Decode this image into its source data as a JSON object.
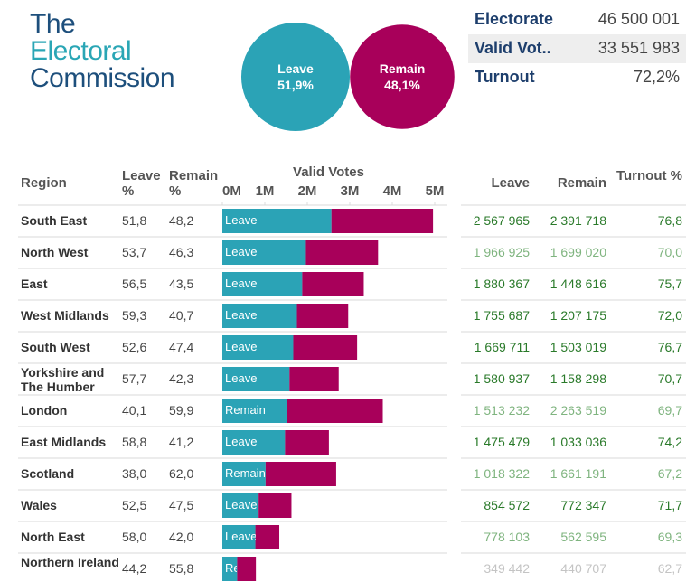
{
  "logo": [
    "The",
    "Electoral",
    "Commission"
  ],
  "overall": [
    {
      "name": "Leave",
      "value": 51.9,
      "value_label": "51,9%",
      "color": "#2ba3b6"
    },
    {
      "name": "Remain",
      "value": 48.1,
      "value_label": "48,1%",
      "color": "#a8005a"
    }
  ],
  "summary": [
    {
      "label": "Electorate",
      "value": 46500001,
      "value_label": "46 500 001"
    },
    {
      "label": "Valid Vot..",
      "value": 33551983,
      "value_label": "33 551 983"
    },
    {
      "label": "Turnout",
      "value": 72.2,
      "value_label": "72,2%"
    }
  ],
  "chart_data": {
    "type": "bar",
    "title": "Valid Votes",
    "headers": {
      "region": "Region",
      "leave_pct": "Leave %",
      "remain_pct": "Remain %",
      "leave": "Leave",
      "remain": "Remain",
      "turnout": "Turnout %"
    },
    "categories": [
      "South East",
      "North West",
      "East",
      "West Midlands",
      "South West",
      "Yorkshire and The Humber",
      "London",
      "East Midlands",
      "Scotland",
      "Wales",
      "North East",
      "Northern Ireland"
    ],
    "series": [
      {
        "name": "Leave",
        "color": "#2ba3b6",
        "values": [
          2567965,
          1966925,
          1880367,
          1755687,
          1669711,
          1580937,
          1513232,
          1475479,
          1018322,
          854572,
          778103,
          349442
        ],
        "value_labels": [
          "2 567 965",
          "1 966 925",
          "1 880 367",
          "1 755 687",
          "1 669 711",
          "1 580 937",
          "1 513 232",
          "1 475 479",
          "1 018 322",
          "854 572",
          "778 103",
          "349 442"
        ]
      },
      {
        "name": "Remain",
        "color": "#a8005a",
        "values": [
          2391718,
          1699020,
          1448616,
          1207175,
          1503019,
          1158298,
          2263519,
          1033036,
          1661191,
          772347,
          562595,
          440707
        ],
        "value_labels": [
          "2 391 718",
          "1 699 020",
          "1 448 616",
          "1 207 175",
          "1 503 019",
          "1 158 298",
          "2 263 519",
          "1 033 036",
          "1 661 191",
          "772 347",
          "562 595",
          "440 707"
        ]
      }
    ],
    "bar_labels": [
      "Leave",
      "Leave",
      "Leave",
      "Leave",
      "Leave",
      "Leave",
      "Remain",
      "Leave",
      "Remain",
      "Leave",
      "Leave",
      "Remain"
    ],
    "leave_pct": {
      "values": [
        51.8,
        53.7,
        56.5,
        59.3,
        52.6,
        57.7,
        40.1,
        58.8,
        38.0,
        52.5,
        58.0,
        44.2
      ],
      "value_labels": [
        "51,8",
        "53,7",
        "56,5",
        "59,3",
        "52,6",
        "57,7",
        "40,1",
        "58,8",
        "38,0",
        "52,5",
        "58,0",
        "44,2"
      ]
    },
    "remain_pct": {
      "values": [
        48.2,
        46.3,
        43.5,
        40.7,
        47.4,
        42.3,
        59.9,
        41.2,
        62.0,
        47.5,
        42.0,
        55.8
      ],
      "value_labels": [
        "48,2",
        "46,3",
        "43,5",
        "40,7",
        "47,4",
        "42,3",
        "59,9",
        "41,2",
        "62,0",
        "47,5",
        "42,0",
        "55,8"
      ]
    },
    "turnout": {
      "values": [
        76.8,
        70.0,
        75.7,
        72.0,
        76.7,
        70.7,
        69.7,
        74.2,
        67.2,
        71.7,
        69.3,
        62.7
      ],
      "value_labels": [
        "76,8",
        "70,0",
        "75,7",
        "72,0",
        "76,7",
        "70,7",
        "69,7",
        "74,2",
        "67,2",
        "71,7",
        "69,3",
        "62,7"
      ]
    },
    "value_colors": [
      "#2a7a2a",
      "#7fb47f",
      "#2a7a2a",
      "#2a7a2a",
      "#2a7a2a",
      "#2a7a2a",
      "#7fb47f",
      "#2a7a2a",
      "#7fb47f",
      "#2a7a2a",
      "#7fb47f",
      "#c4c4c4"
    ],
    "xlim": [
      0,
      5000000
    ],
    "xticks": [
      {
        "value": 0,
        "label": "0M"
      },
      {
        "value": 1000000,
        "label": "1M"
      },
      {
        "value": 2000000,
        "label": "2M"
      },
      {
        "value": 3000000,
        "label": "3M"
      },
      {
        "value": 4000000,
        "label": "4M"
      },
      {
        "value": 5000000,
        "label": "5M"
      }
    ]
  }
}
